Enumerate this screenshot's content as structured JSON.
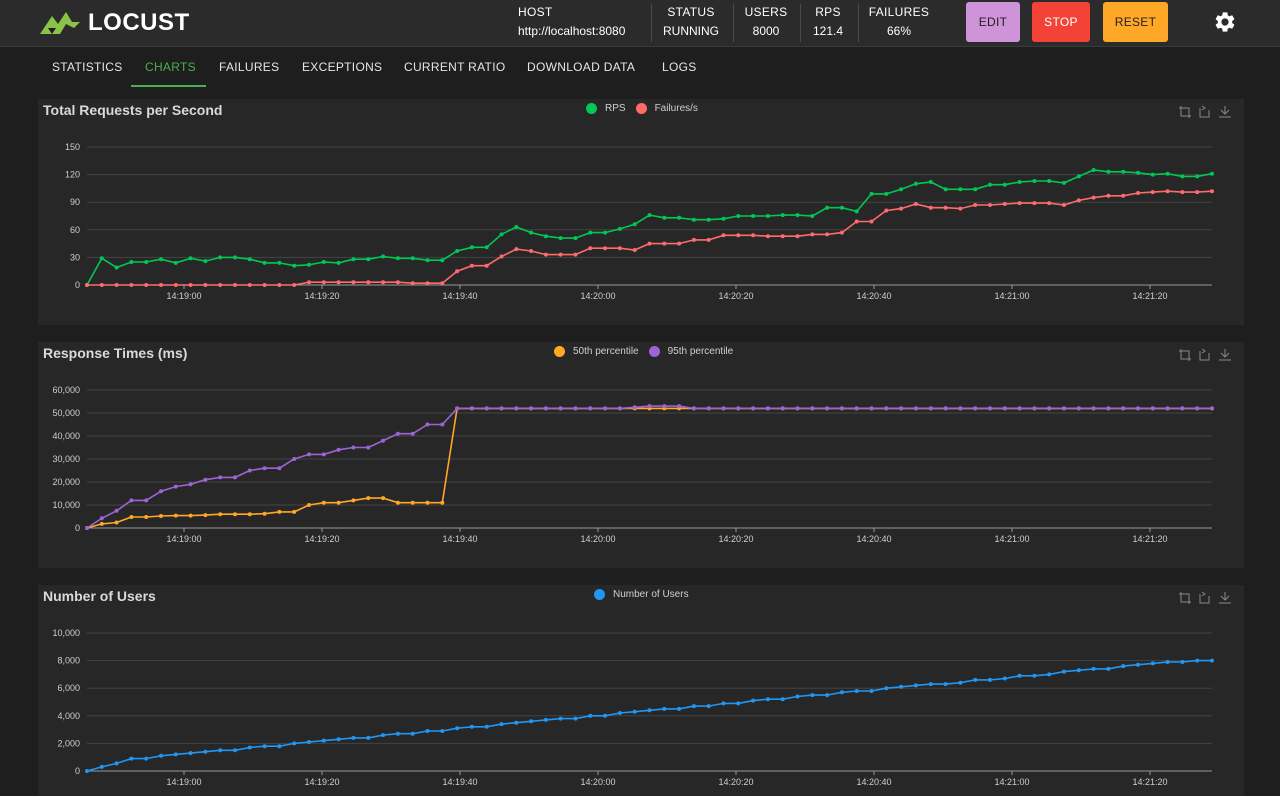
{
  "app": {
    "name": "LOCUST"
  },
  "header": {
    "stats": [
      {
        "label": "HOST",
        "value": "http://localhost:8080"
      },
      {
        "label": "STATUS",
        "value": "RUNNING"
      },
      {
        "label": "USERS",
        "value": "8000"
      },
      {
        "label": "RPS",
        "value": "121.4"
      },
      {
        "label": "FAILURES",
        "value": "66%"
      }
    ],
    "buttons": {
      "edit": "EDIT",
      "stop": "STOP",
      "reset": "RESET"
    },
    "colors": {
      "edit": "#ce93d8",
      "stop": "#f44336",
      "reset": "#ffa726"
    }
  },
  "tabs": [
    {
      "label": "STATISTICS",
      "active": false
    },
    {
      "label": "CHARTS",
      "active": true
    },
    {
      "label": "FAILURES",
      "active": false
    },
    {
      "label": "EXCEPTIONS",
      "active": false
    },
    {
      "label": "CURRENT RATIO",
      "active": false
    },
    {
      "label": "DOWNLOAD DATA",
      "active": false
    },
    {
      "label": "LOGS",
      "active": false
    }
  ],
  "chart_data": [
    {
      "type": "line",
      "title": "Total Requests per Second",
      "x_ticks": [
        "14:19:00",
        "14:19:20",
        "14:19:40",
        "14:20:00",
        "14:20:20",
        "14:20:40",
        "14:21:00",
        "14:21:20"
      ],
      "ylim": [
        0,
        150
      ],
      "y_ticks": [
        "0",
        "30",
        "60",
        "90",
        "120",
        "150"
      ],
      "grid": true,
      "legend": "top-center",
      "series": [
        {
          "name": "RPS",
          "color": "#00c853",
          "values": [
            0,
            29,
            19,
            25,
            25,
            28,
            24,
            29,
            26,
            30,
            30,
            28,
            24,
            24,
            21,
            22,
            25,
            24,
            28,
            28,
            31,
            29,
            29,
            27,
            27,
            37,
            41,
            41,
            55,
            63,
            57,
            53,
            51,
            51,
            57,
            57,
            61,
            66,
            76,
            73,
            73,
            71,
            71,
            72,
            75,
            75,
            75,
            76,
            76,
            75,
            84,
            84,
            80,
            99,
            99,
            104,
            110,
            112,
            104,
            104,
            104,
            109,
            109,
            112,
            113,
            113,
            111,
            118,
            125,
            123,
            123,
            122,
            120,
            121,
            118,
            118,
            121
          ]
        },
        {
          "name": "Failures/s",
          "color": "#ff6b6b",
          "values": [
            0,
            0,
            0,
            0,
            0,
            0,
            0,
            0,
            0,
            0,
            0,
            0,
            0,
            0,
            0,
            3,
            3,
            3,
            3,
            3,
            3,
            3,
            2,
            2,
            2,
            15,
            21,
            21,
            31,
            39,
            37,
            33,
            33,
            33,
            40,
            40,
            40,
            38,
            45,
            45,
            45,
            49,
            49,
            54,
            54,
            54,
            53,
            53,
            53,
            55,
            55,
            57,
            69,
            69,
            81,
            83,
            88,
            84,
            84,
            83,
            87,
            87,
            88,
            89,
            89,
            89,
            87,
            92,
            95,
            97,
            97,
            100,
            101,
            102,
            101,
            101,
            102
          ]
        }
      ]
    },
    {
      "type": "line",
      "title": "Response Times (ms)",
      "x_ticks": [
        "14:19:00",
        "14:19:20",
        "14:19:40",
        "14:20:00",
        "14:20:20",
        "14:20:40",
        "14:21:00",
        "14:21:20"
      ],
      "ylim": [
        0,
        60000
      ],
      "y_ticks": [
        "0",
        "10,000",
        "20,000",
        "30,000",
        "40,000",
        "50,000",
        "60,000"
      ],
      "grid": true,
      "legend": "top-center",
      "series": [
        {
          "name": "50th percentile",
          "color": "#ffa726",
          "values": [
            0,
            1800,
            2400,
            4800,
            4800,
            5200,
            5400,
            5400,
            5600,
            6000,
            6000,
            6000,
            6200,
            7000,
            7000,
            10000,
            11000,
            11000,
            12000,
            13000,
            13000,
            11000,
            11000,
            11000,
            11000,
            52000,
            52000,
            52000,
            52000,
            52000,
            52000,
            52000,
            52000,
            52000,
            52000,
            52000,
            52000,
            52000,
            52000,
            52000,
            52000,
            52000,
            52000,
            52000,
            52000,
            52000,
            52000,
            52000,
            52000,
            52000,
            52000,
            52000,
            52000,
            52000,
            52000,
            52000,
            52000,
            52000,
            52000,
            52000,
            52000,
            52000,
            52000,
            52000,
            52000,
            52000,
            52000,
            52000,
            52000,
            52000,
            52000,
            52000,
            52000,
            52000,
            52000,
            52000,
            52000
          ]
        },
        {
          "name": "95th percentile",
          "color": "#9c64d6",
          "values": [
            0,
            4200,
            7500,
            12000,
            12000,
            16000,
            18000,
            19000,
            21000,
            22000,
            22000,
            25000,
            26000,
            26000,
            30000,
            32000,
            32000,
            34000,
            35000,
            35000,
            38000,
            41000,
            41000,
            45000,
            45000,
            52000,
            52000,
            52000,
            52000,
            52000,
            52000,
            52000,
            52000,
            52000,
            52000,
            52000,
            52000,
            52500,
            53000,
            53000,
            53000,
            52000,
            52000,
            52000,
            52000,
            52000,
            52000,
            52000,
            52000,
            52000,
            52000,
            52000,
            52000,
            52000,
            52000,
            52000,
            52000,
            52000,
            52000,
            52000,
            52000,
            52000,
            52000,
            52000,
            52000,
            52000,
            52000,
            52000,
            52000,
            52000,
            52000,
            52000,
            52000,
            52000,
            52000,
            52000,
            52000
          ]
        }
      ]
    },
    {
      "type": "line",
      "title": "Number of Users",
      "x_ticks": [
        "14:19:00",
        "14:19:20",
        "14:19:40",
        "14:20:00",
        "14:20:20",
        "14:20:40",
        "14:21:00",
        "14:21:20"
      ],
      "ylim": [
        0,
        10000
      ],
      "y_ticks": [
        "0",
        "2,000",
        "4,000",
        "6,000",
        "8,000",
        "10,000"
      ],
      "grid": true,
      "legend": "top-center",
      "series": [
        {
          "name": "Number of Users",
          "color": "#2196f3",
          "values": [
            0,
            300,
            550,
            900,
            900,
            1100,
            1200,
            1300,
            1400,
            1500,
            1500,
            1700,
            1800,
            1800,
            2000,
            2100,
            2200,
            2300,
            2400,
            2400,
            2600,
            2700,
            2700,
            2900,
            2900,
            3100,
            3200,
            3200,
            3400,
            3500,
            3600,
            3700,
            3800,
            3800,
            4000,
            4000,
            4200,
            4300,
            4400,
            4500,
            4500,
            4700,
            4700,
            4900,
            4900,
            5100,
            5200,
            5200,
            5400,
            5500,
            5500,
            5700,
            5800,
            5800,
            6000,
            6100,
            6200,
            6300,
            6300,
            6400,
            6600,
            6600,
            6700,
            6900,
            6900,
            7000,
            7200,
            7300,
            7400,
            7400,
            7600,
            7700,
            7800,
            7900,
            7900,
            8000,
            8000
          ]
        }
      ]
    }
  ]
}
